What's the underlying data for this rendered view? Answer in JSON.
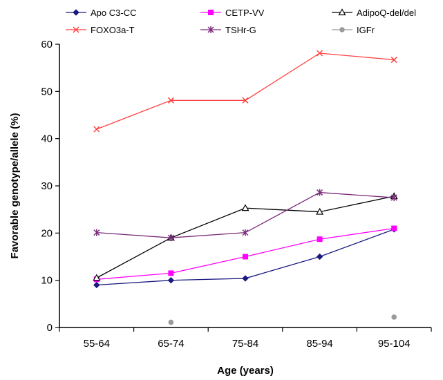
{
  "chart_data": {
    "type": "line",
    "title": "",
    "xlabel": "Age (years)",
    "ylabel": "Favorable genotype/allele (%)",
    "ylim": [
      0,
      60
    ],
    "yticks": [
      0,
      10,
      20,
      30,
      40,
      50,
      60
    ],
    "grid": false,
    "legend_position": "top",
    "categories": [
      "55-64",
      "65-74",
      "75-84",
      "85-94",
      "95-104"
    ],
    "series": [
      {
        "name": "Apo C3-CC",
        "color": "#1a1a80",
        "marker": "diamond",
        "values": [
          9,
          10,
          10.4,
          15,
          20.8
        ]
      },
      {
        "name": "CETP-VV",
        "color": "#ff00ff",
        "marker": "square",
        "values": [
          10.2,
          11.5,
          15,
          18.7,
          21
        ]
      },
      {
        "name": "AdipoQ-del/del",
        "color": "#000000",
        "marker": "triangle",
        "values": [
          10.5,
          19,
          25.3,
          24.5,
          27.8
        ]
      },
      {
        "name": "FOXO3a-T",
        "color": "#ff4040",
        "marker": "x",
        "values": [
          42,
          48.1,
          48.1,
          58.1,
          56.7
        ]
      },
      {
        "name": "TSHr-G",
        "color": "#7a2a7a",
        "marker": "star",
        "values": [
          20.1,
          19,
          20.1,
          28.6,
          27.5
        ]
      },
      {
        "name": "IGFr",
        "color": "#9a9a9a",
        "marker": "circle",
        "values": [
          null,
          1.1,
          null,
          null,
          2.2
        ]
      }
    ]
  }
}
